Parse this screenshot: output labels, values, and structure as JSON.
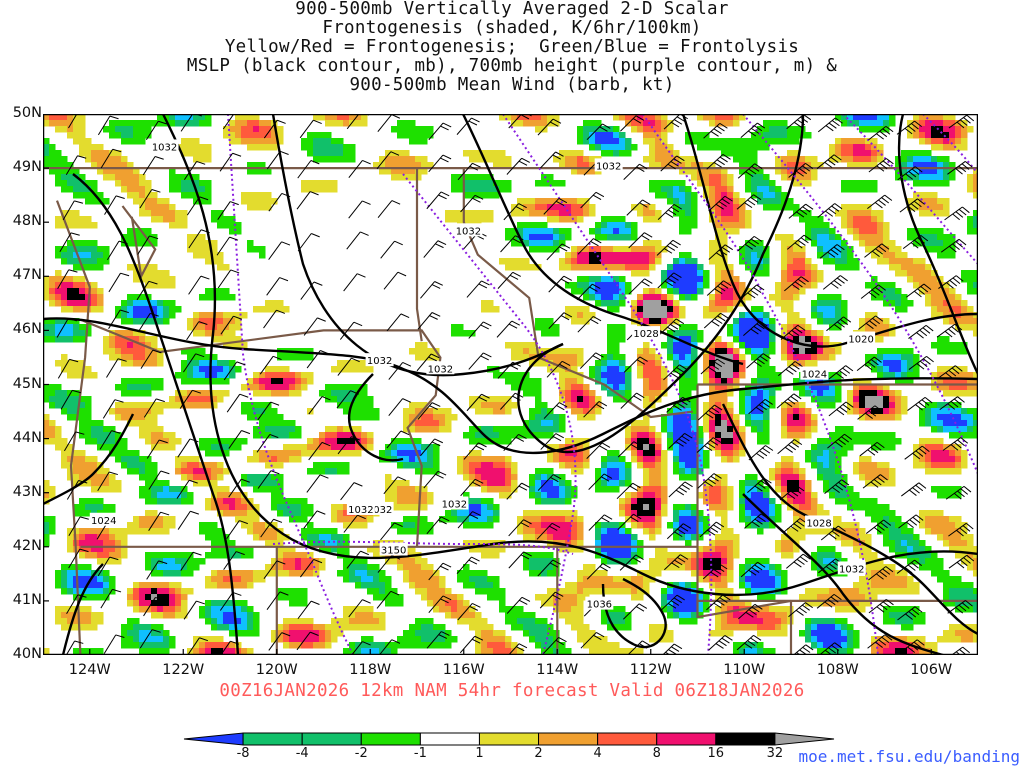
{
  "title": {
    "lines": [
      "900-500mb Vertically Averaged 2-D Scalar",
      "Frontogenesis (shaded, K/6hr/100km)",
      "Yellow/Red = Frontogenesis;  Green/Blue = Frontolysis",
      "MSLP (black contour, mb), 700mb height (purple contour, m) &",
      "900-500mb Mean Wind (barb, kt)"
    ]
  },
  "map": {
    "lat_labels": [
      "50N",
      "49N",
      "48N",
      "47N",
      "46N",
      "45N",
      "44N",
      "43N",
      "42N",
      "41N",
      "40N"
    ],
    "lon_labels": [
      "124W",
      "122W",
      "120W",
      "118W",
      "116W",
      "114W",
      "112W",
      "110W",
      "108W",
      "106W"
    ],
    "lat_values": [
      50,
      49,
      48,
      47,
      46,
      45,
      44,
      43,
      42,
      41,
      40
    ],
    "lon_values": [
      -124,
      -122,
      -120,
      -118,
      -116,
      -114,
      -112,
      -110,
      -108,
      -106
    ],
    "extent": {
      "lon_min": -125.0,
      "lon_max": -105.0,
      "lat_min": 40.0,
      "lat_max": 50.0
    },
    "mslp_labels": [
      "1032",
      "1032",
      "1032",
      "1032",
      "1032",
      "1032",
      "1028",
      "1020",
      "1032",
      "1024",
      "1024",
      "1032",
      "1028",
      "1032",
      "1036"
    ],
    "height_labels": [
      "3150"
    ],
    "shading_colors": {
      "strong_lysis": "#1e3cff",
      "lysis": "#0fc0ff",
      "weak_lysis_dark": "#11c06a",
      "weak_lysis": "#1ee000",
      "genesis_1": "#e3dc2e",
      "genesis_2": "#f0a030",
      "genesis_4": "#ff5a3c",
      "genesis_8": "#f0106e",
      "genesis_16": "#000000",
      "genesis_32": "#a0a0a0",
      "mslp": "#000000",
      "height": "#8a1ee0",
      "borders": "#7a5a48"
    }
  },
  "run_line": "00Z16JAN2026 12km NAM 54hr forecast Valid 06Z18JAN2026",
  "colorbar": {
    "labels": [
      "-8",
      "-4",
      "-2",
      "-1",
      "1",
      "2",
      "4",
      "8",
      "16",
      "32"
    ],
    "colors": [
      "#1e3cff",
      "#11c06a",
      "#11c06a",
      "#1ee000",
      "#ffffff",
      "#e3dc2e",
      "#f0a030",
      "#ff5a3c",
      "#f0106e",
      "#000000",
      "#a0a0a0"
    ]
  },
  "footer_url": "moe.met.fsu.edu/banding"
}
